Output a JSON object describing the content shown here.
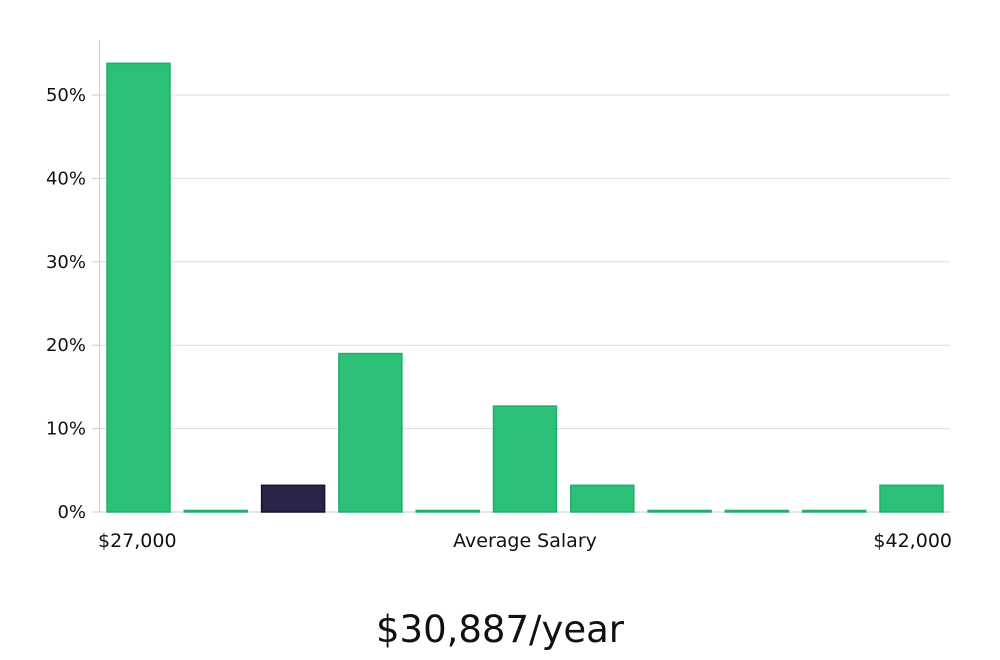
{
  "chart_data": {
    "type": "bar",
    "title": "",
    "xlabel": "Average Salary",
    "x_range_labels": {
      "min": "$27,000",
      "max": "$42,000"
    },
    "ylabel": "",
    "ylim": [
      0,
      0.55
    ],
    "y_ticks": [
      0,
      0.1,
      0.2,
      0.3,
      0.4,
      0.5
    ],
    "y_tick_labels": [
      "0%",
      "10%",
      "20%",
      "30%",
      "40%",
      "50%"
    ],
    "grid": true,
    "legend": "none",
    "values": [
      0.538,
      0.0,
      0.032,
      0.19,
      0.0,
      0.127,
      0.032,
      0.0,
      0.0,
      0.0,
      0.032
    ],
    "highlight_index": 2,
    "colors": {
      "bar": "#2bbf77",
      "highlight": "#282546",
      "grid": "#dddddd",
      "axis": "#cccccc"
    }
  },
  "salary": {
    "display": "$30,887/year"
  }
}
